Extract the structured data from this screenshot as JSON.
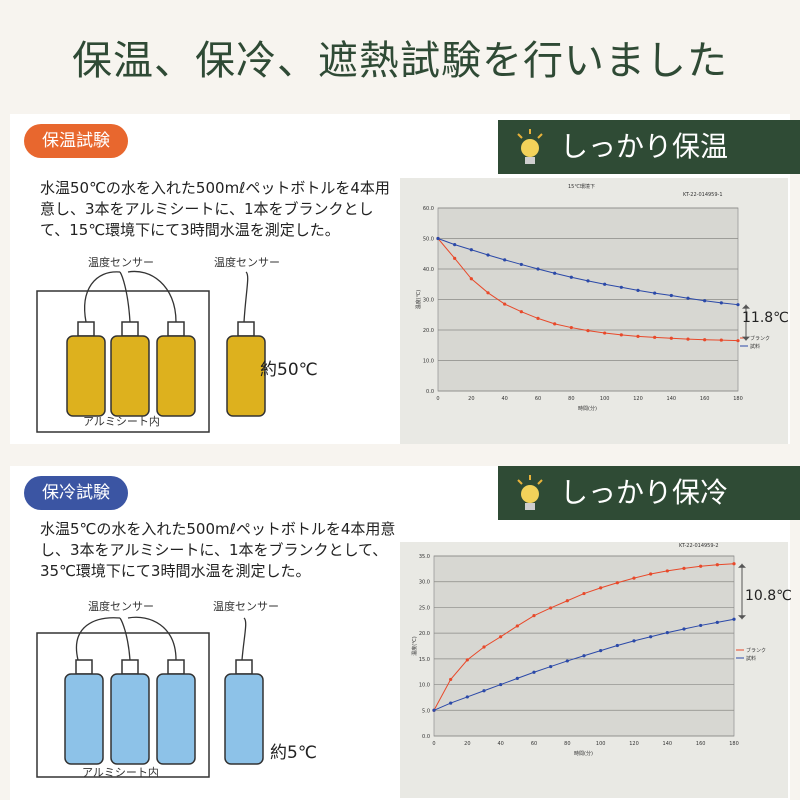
{
  "page_title": "保温、保冷、遮熱試験を行いました",
  "warm": {
    "tag": "保温試験",
    "banner": "しっかり保温",
    "description": "水温50℃の水を入れた500mℓペットボトルを4本用意し、3本をアルミシートに、1本をブランクとして、15℃環境下にて3時間水温を測定した。",
    "sensor_label_left": "温度センサー",
    "sensor_label_right": "温度センサー",
    "foil_label": "アルミシート内",
    "approx_label": "約50℃",
    "diff_label": "11.8℃"
  },
  "cold": {
    "tag": "保冷試験",
    "banner": "しっかり保冷",
    "description": "水温5℃の水を入れた500mℓペットボトルを4本用意し、3本をアルミシートに、1本をブランクとして、35℃環境下にて3時間水温を測定した。",
    "sensor_label_left": "温度センサー",
    "sensor_label_right": "温度センサー",
    "foil_label": "アルミシート内",
    "approx_label": "約5℃",
    "diff_label": "10.8℃"
  },
  "colors": {
    "title": "#2f4a35",
    "banner_bg": "#2f4b35",
    "warm_tag": "#e8672e",
    "cold_tag": "#3b55a3",
    "warm_liquid": "#ddb11e",
    "cold_liquid": "#8dc2e8",
    "blank_line": "#e8492a",
    "sample_line": "#2b49a8"
  },
  "chart_data": [
    {
      "type": "line",
      "title": "15℃環境下",
      "code": "KT-22-014959-1",
      "xlabel": "時間(分)",
      "ylabel": "温度(℃)",
      "x": [
        0,
        10,
        20,
        30,
        40,
        50,
        60,
        70,
        80,
        90,
        100,
        110,
        120,
        130,
        140,
        150,
        160,
        170,
        180
      ],
      "xticks": [
        0,
        20,
        40,
        60,
        80,
        100,
        120,
        140,
        160,
        180
      ],
      "yticks": [
        0,
        10,
        20,
        30,
        40,
        50,
        60
      ],
      "tick_labels_y": [
        "0.0",
        "10.0",
        "20.0",
        "30.0",
        "40.0",
        "50.0",
        "60.0"
      ],
      "xlim": [
        0,
        180
      ],
      "ylim": [
        0,
        60
      ],
      "series": [
        {
          "name": "ブランク",
          "color": "#e8492a",
          "values": [
            50.0,
            43.5,
            36.8,
            32.2,
            28.5,
            26.0,
            23.8,
            22.0,
            20.8,
            19.8,
            19.0,
            18.4,
            17.9,
            17.6,
            17.3,
            17.0,
            16.8,
            16.7,
            16.5
          ]
        },
        {
          "name": "試料",
          "color": "#2b49a8",
          "values": [
            50.0,
            48.0,
            46.3,
            44.6,
            43.0,
            41.5,
            40.0,
            38.6,
            37.3,
            36.1,
            35.0,
            34.0,
            33.0,
            32.1,
            31.3,
            30.4,
            29.6,
            28.9,
            28.3
          ]
        }
      ]
    },
    {
      "type": "line",
      "title": "35℃環境下",
      "code": "KT-22-014959-2",
      "xlabel": "時間(分)",
      "ylabel": "温度(℃)",
      "x": [
        0,
        10,
        20,
        30,
        40,
        50,
        60,
        70,
        80,
        90,
        100,
        110,
        120,
        130,
        140,
        150,
        160,
        170,
        180
      ],
      "xticks": [
        0,
        20,
        40,
        60,
        80,
        100,
        120,
        140,
        160,
        180
      ],
      "yticks": [
        0,
        5,
        10,
        15,
        20,
        25,
        30,
        35
      ],
      "tick_labels_y": [
        "0.0",
        "5.0",
        "10.0",
        "15.0",
        "20.0",
        "25.0",
        "30.0",
        "35.0"
      ],
      "xlim": [
        0,
        180
      ],
      "ylim": [
        0,
        35
      ],
      "series": [
        {
          "name": "ブランク",
          "color": "#e8492a",
          "values": [
            5.0,
            11.0,
            14.8,
            17.3,
            19.3,
            21.4,
            23.4,
            24.9,
            26.3,
            27.7,
            28.8,
            29.8,
            30.7,
            31.5,
            32.1,
            32.6,
            33.0,
            33.3,
            33.5
          ]
        },
        {
          "name": "試料",
          "color": "#2b49a8",
          "values": [
            5.0,
            6.4,
            7.6,
            8.8,
            10.0,
            11.2,
            12.4,
            13.5,
            14.6,
            15.6,
            16.6,
            17.6,
            18.5,
            19.3,
            20.1,
            20.8,
            21.5,
            22.1,
            22.7
          ]
        }
      ]
    }
  ]
}
